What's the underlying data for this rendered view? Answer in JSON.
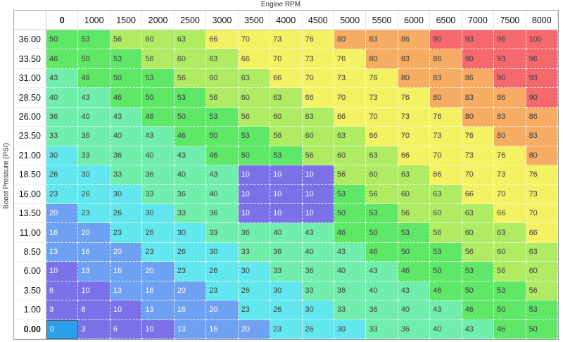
{
  "axis": {
    "x_label": "Engine RPM",
    "y_label": "Boost Pressure (PSI)"
  },
  "table": {
    "col_headers": [
      "0",
      "1000",
      "1500",
      "2000",
      "2500",
      "3000",
      "3500",
      "4000",
      "4500",
      "5000",
      "5500",
      "6000",
      "6500",
      "7000",
      "7500",
      "8000"
    ],
    "row_headers": [
      "36.00",
      "33.50",
      "31.00",
      "28.50",
      "26.00",
      "23.50",
      "21.00",
      "18.50",
      "16.00",
      "13.50",
      "11.00",
      "8.50",
      "6.00",
      "3.50",
      "1.00",
      "0.00"
    ],
    "rows": [
      [
        50,
        53,
        56,
        60,
        63,
        66,
        70,
        73,
        76,
        80,
        83,
        86,
        90,
        93,
        96,
        100
      ],
      [
        46,
        50,
        53,
        56,
        60,
        63,
        66,
        70,
        73,
        76,
        80,
        83,
        86,
        90,
        93,
        96
      ],
      [
        43,
        46,
        50,
        53,
        56,
        60,
        63,
        66,
        70,
        73,
        76,
        80,
        83,
        86,
        90,
        93
      ],
      [
        40,
        43,
        46,
        50,
        53,
        56,
        60,
        63,
        66,
        70,
        73,
        76,
        80,
        83,
        86,
        90
      ],
      [
        36,
        40,
        43,
        46,
        50,
        53,
        56,
        60,
        63,
        66,
        70,
        73,
        76,
        80,
        83,
        86
      ],
      [
        33,
        36,
        40,
        43,
        46,
        50,
        53,
        56,
        60,
        63,
        66,
        70,
        73,
        76,
        80,
        83
      ],
      [
        30,
        33,
        36,
        40,
        43,
        46,
        50,
        53,
        56,
        60,
        63,
        66,
        70,
        73,
        76,
        80
      ],
      [
        26,
        30,
        33,
        36,
        40,
        43,
        10,
        10,
        10,
        56,
        60,
        63,
        66,
        70,
        73,
        76
      ],
      [
        23,
        26,
        30,
        33,
        36,
        40,
        10,
        10,
        10,
        53,
        56,
        60,
        63,
        66,
        70,
        73
      ],
      [
        20,
        23,
        26,
        30,
        33,
        36,
        10,
        10,
        10,
        50,
        53,
        56,
        60,
        63,
        66,
        70
      ],
      [
        16,
        20,
        23,
        26,
        30,
        33,
        36,
        40,
        43,
        46,
        50,
        53,
        56,
        60,
        63,
        66
      ],
      [
        13,
        16,
        20,
        23,
        26,
        30,
        33,
        36,
        40,
        43,
        46,
        50,
        53,
        56,
        60,
        63
      ],
      [
        10,
        13,
        16,
        20,
        23,
        26,
        30,
        33,
        36,
        40,
        43,
        46,
        50,
        53,
        56,
        60
      ],
      [
        6,
        10,
        13,
        16,
        20,
        23,
        26,
        30,
        33,
        36,
        40,
        43,
        46,
        50,
        53,
        56
      ],
      [
        3,
        6,
        10,
        13,
        16,
        20,
        23,
        26,
        30,
        33,
        36,
        40,
        43,
        46,
        50,
        53
      ],
      [
        0,
        3,
        6,
        10,
        13,
        16,
        20,
        23,
        26,
        30,
        33,
        36,
        40,
        43,
        46,
        50
      ]
    ],
    "selected_cell": {
      "row_header": "0.00",
      "col_header": "0",
      "row_index": 15,
      "col_index": 0,
      "value": 0
    }
  },
  "colors": {
    "value_bands": [
      {
        "max": 10,
        "bg": "#7b72ea",
        "text": "#ffffff"
      },
      {
        "max": 20,
        "bg": "#6fa1f2",
        "text": "#ffffff"
      },
      {
        "max": 30,
        "bg": "#63e7ee",
        "text": "#3a3a3a"
      },
      {
        "max": 43,
        "bg": "#72eeac",
        "text": "#3a3a3a"
      },
      {
        "max": 53,
        "bg": "#5fe767",
        "text": "#3a3a3a"
      },
      {
        "max": 63,
        "bg": "#afec64",
        "text": "#3a3a3a"
      },
      {
        "max": 76,
        "bg": "#f4f163",
        "text": "#3a3a3a"
      },
      {
        "max": 86,
        "bg": "#f6ad63",
        "text": "#3a3a3a"
      },
      {
        "max": 100,
        "bg": "#f5696e",
        "text": "#3a3a3a"
      }
    ],
    "selected_bg": "#2b9fe9",
    "selected_text": "#ffffff",
    "selected_border": "#565b5e"
  }
}
